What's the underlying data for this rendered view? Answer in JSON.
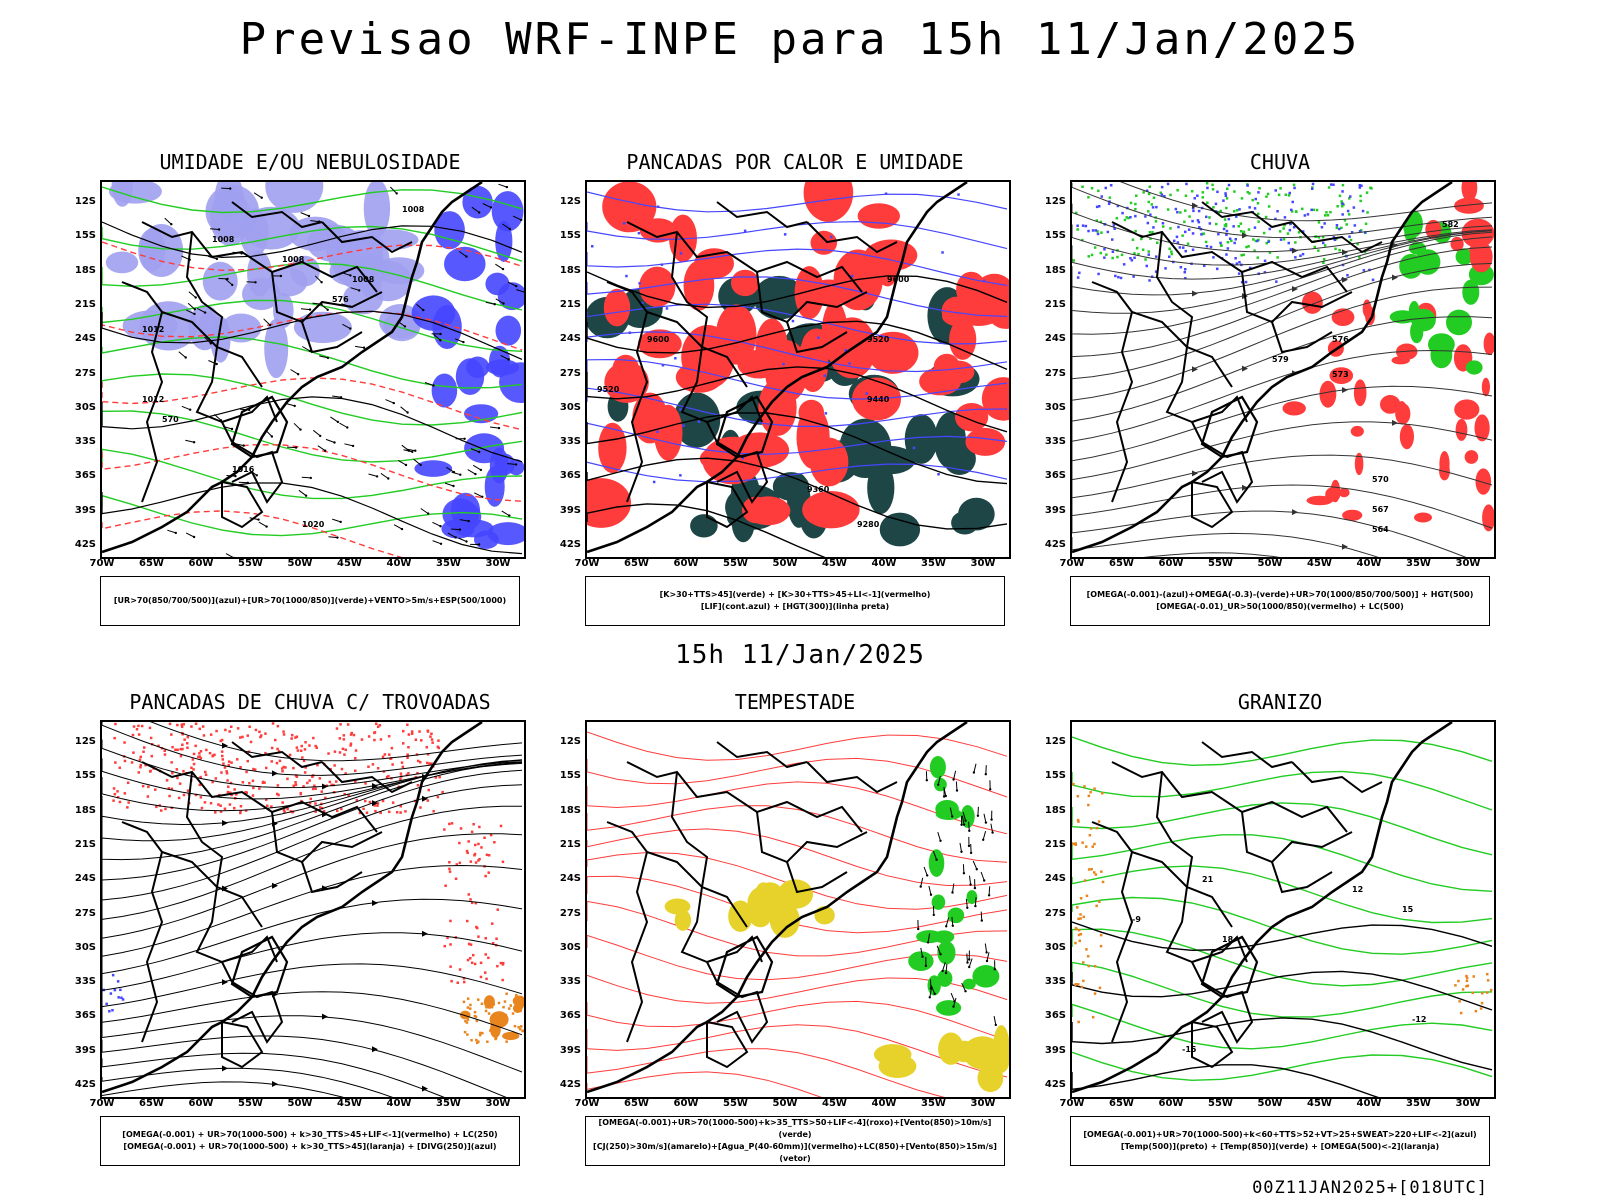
{
  "title": "Previsao WRF-INPE  para 15h 11/Jan/2025",
  "subtitle": "15h 11/Jan/2025",
  "footer": "00Z11JAN2025+[018UTC]",
  "lat_labels": [
    "12S",
    "15S",
    "18S",
    "21S",
    "24S",
    "27S",
    "30S",
    "33S",
    "36S",
    "39S",
    "42S"
  ],
  "lon_labels": [
    "70W",
    "65W",
    "60W",
    "55W",
    "50W",
    "45W",
    "40W",
    "35W",
    "30W"
  ],
  "panels": [
    {
      "id": "umidade",
      "title": "UMIDADE E/OU NEBULOSIDADE",
      "legend": [
        "[UR>70(850/700/500)](azul)+[UR>70(1000/850)](verde)+VENTO>5m/s+ESP(500/1000)"
      ],
      "contour_labels": [
        "1008",
        "1008",
        "1008",
        "1008",
        "1012",
        "1012",
        "1016",
        "1020",
        "576",
        "570"
      ]
    },
    {
      "id": "pancadas",
      "title": "PANCADAS POR CALOR E UMIDADE",
      "legend": [
        "[K>30+TTS>45](verde) + [K>30+TTS>45+LI<-1](vermelho)",
        "[LIF](cont.azul) + [HGT(300)](linha preta)"
      ],
      "contour_labels": [
        "9600",
        "9600",
        "9520",
        "9520",
        "9440",
        "9360",
        "9280"
      ]
    },
    {
      "id": "chuva",
      "title": "CHUVA",
      "legend": [
        "[OMEGA(-0.001)-(azul)+OMEGA(-0.3)-(verde)+UR>70(1000/850/700/500)] + HGT(500)",
        "[OMEGA(-0.01)_UR>50(1000/850)(vermelho) + LC(500)"
      ],
      "contour_labels": [
        "582",
        "579",
        "576",
        "573",
        "570",
        "567",
        "564"
      ]
    },
    {
      "id": "trovoadas",
      "title": "PANCADAS DE CHUVA C/ TROVOADAS",
      "legend": [
        "[OMEGA(-0.001) + UR>70(1000-500) + k>30_TTS>45+LIF<-1](vermelho) + LC(250)",
        "[OMEGA(-0.001) + UR>70(1000-500) + k>30_TTS>45](laranja) + [DIVG(250)](azul)"
      ],
      "contour_labels": []
    },
    {
      "id": "tempestade",
      "title": "TEMPESTADE",
      "legend": [
        "[OMEGA(-0.001)+UR>70(1000-500)+k>35_TTS>50+LIF<-4](roxo)+[Vento(850)>10m/s](verde)",
        "[CJ(250)>30m/s](amarelo)+[Agua_P(40-60mm)](vermelho)+LC(850)+[Vento(850)>15m/s](vetor)"
      ],
      "contour_labels": []
    },
    {
      "id": "granizo",
      "title": "GRANIZO",
      "legend": [
        "[OMEGA(-0.001)+UR>70(1000-500)+k<60+TTS>52+VT>25+SWEAT>220+LIF<-2](azul)",
        "[Temp(500)](preto) + [Temp(850)](verde) + [OMEGA(500)<-2](laranja)"
      ],
      "contour_labels": [
        "-9",
        "-12",
        "-15",
        "21",
        "18",
        "15",
        "12"
      ]
    }
  ],
  "colors": {
    "blue": "#4646ff",
    "lightblue": "#a0a0f0",
    "green": "#22cc22",
    "red": "#ff3c3c",
    "teal": "#1e4646",
    "orange": "#e8851e",
    "yellow": "#e6d22a",
    "black": "#000000"
  }
}
